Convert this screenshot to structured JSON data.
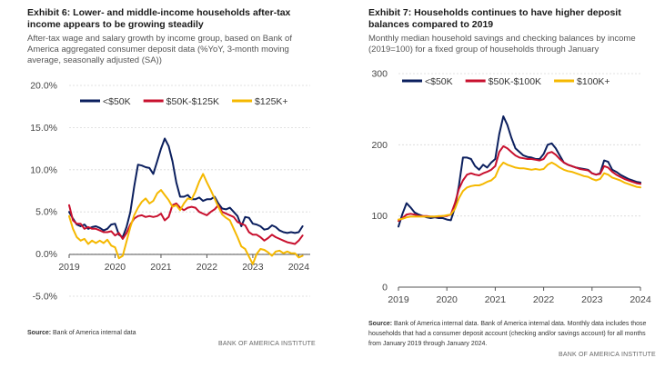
{
  "exhibit6": {
    "title": "Exhibit 6: Lower- and middle-income households after-tax income appears to be growing steadily",
    "subtitle": "After-tax wage and salary growth by income group, based on Bank of America aggregated consumer deposit data (%YoY, 3-month moving average, seasonally adjusted (SA))",
    "source_label": "Source:",
    "source_text": "Bank of America internal data",
    "brand": "BANK OF AMERICA INSTITUTE"
  },
  "exhibit7": {
    "title": "Exhibit 7: Households continues to have higher deposit balances compared to 2019",
    "subtitle": "Monthly median household savings and checking balances by income (2019=100) for a fixed group of households through January",
    "source_label": "Source:",
    "source_text": "Bank of America internal data. Bank of America internal data. Monthly data includes those households that had a consumer deposit account (checking and/or savings account) for all months from January 2019 through January 2024.",
    "brand": "BANK OF AMERICA INSTITUTE"
  },
  "colors": {
    "low": "#0b1f5e",
    "mid": "#c8102e",
    "high": "#f5b800",
    "axis": "#777777",
    "grid": "#d8d8d8"
  },
  "chart_data": [
    {
      "type": "line",
      "ylim": [
        -5,
        20
      ],
      "yticks": [
        -5,
        0,
        5,
        10,
        15,
        20
      ],
      "ytick_labels": [
        "-5.0%",
        "0.0%",
        "5.0%",
        "10.0%",
        "15.0%",
        "20.0%"
      ],
      "xlim": [
        2019,
        2024.25
      ],
      "xticks": [
        2019,
        2020,
        2021,
        2022,
        2023,
        2024
      ],
      "xtick_labels": [
        "2019",
        "2020",
        "2021",
        "2022",
        "2023",
        "2024"
      ],
      "legend_position": "top",
      "series": [
        {
          "name": "<$50K",
          "color_key": "low",
          "x": [
            2019.0,
            2019.083,
            2019.167,
            2019.25,
            2019.333,
            2019.417,
            2019.5,
            2019.583,
            2019.667,
            2019.75,
            2019.833,
            2019.917,
            2020.0,
            2020.083,
            2020.167,
            2020.25,
            2020.333,
            2020.417,
            2020.5,
            2020.583,
            2020.667,
            2020.75,
            2020.833,
            2020.917,
            2021.0,
            2021.083,
            2021.167,
            2021.25,
            2021.333,
            2021.417,
            2021.5,
            2021.583,
            2021.667,
            2021.75,
            2021.833,
            2021.917,
            2022.0,
            2022.083,
            2022.167,
            2022.25,
            2022.333,
            2022.417,
            2022.5,
            2022.583,
            2022.667,
            2022.75,
            2022.833,
            2022.917,
            2023.0,
            2023.083,
            2023.167,
            2023.25,
            2023.333,
            2023.417,
            2023.5,
            2023.583,
            2023.667,
            2023.75,
            2023.833,
            2023.917,
            2024.0,
            2024.083
          ],
          "y": [
            5.0,
            4.2,
            3.5,
            3.3,
            3.5,
            3.0,
            3.2,
            3.3,
            3.1,
            2.8,
            3.0,
            3.5,
            3.6,
            2.3,
            2.0,
            3.2,
            5.0,
            8.0,
            10.6,
            10.5,
            10.3,
            10.2,
            9.5,
            11.0,
            12.5,
            13.7,
            12.8,
            11.0,
            8.5,
            6.8,
            6.8,
            7.0,
            6.5,
            6.5,
            6.7,
            6.3,
            6.5,
            6.5,
            6.8,
            6.0,
            5.4,
            5.3,
            5.5,
            5.0,
            4.5,
            3.3,
            4.4,
            4.3,
            3.6,
            3.5,
            3.3,
            2.9,
            3.0,
            3.4,
            3.2,
            2.8,
            2.6,
            2.5,
            2.6,
            2.5,
            2.6,
            3.3
          ]
        },
        {
          "name": "$50K-$125K",
          "color_key": "mid",
          "x": [
            2019.0,
            2019.083,
            2019.167,
            2019.25,
            2019.333,
            2019.417,
            2019.5,
            2019.583,
            2019.667,
            2019.75,
            2019.833,
            2019.917,
            2020.0,
            2020.083,
            2020.167,
            2020.25,
            2020.333,
            2020.417,
            2020.5,
            2020.583,
            2020.667,
            2020.75,
            2020.833,
            2020.917,
            2021.0,
            2021.083,
            2021.167,
            2021.25,
            2021.333,
            2021.417,
            2021.5,
            2021.583,
            2021.667,
            2021.75,
            2021.833,
            2021.917,
            2022.0,
            2022.083,
            2022.167,
            2022.25,
            2022.333,
            2022.417,
            2022.5,
            2022.583,
            2022.667,
            2022.75,
            2022.833,
            2022.917,
            2023.0,
            2023.083,
            2023.167,
            2023.25,
            2023.333,
            2023.417,
            2023.5,
            2023.583,
            2023.667,
            2023.75,
            2023.833,
            2023.917,
            2024.0,
            2024.083
          ],
          "y": [
            5.8,
            4.0,
            3.6,
            3.6,
            3.0,
            3.2,
            3.0,
            3.0,
            2.8,
            2.6,
            2.6,
            2.7,
            2.2,
            2.5,
            1.8,
            2.5,
            3.5,
            4.2,
            4.5,
            4.6,
            4.4,
            4.5,
            4.4,
            4.5,
            4.8,
            4.0,
            4.4,
            5.8,
            6.0,
            5.5,
            5.2,
            5.5,
            5.6,
            5.5,
            5.0,
            4.8,
            4.6,
            5.0,
            5.3,
            5.8,
            5.0,
            4.8,
            4.6,
            4.4,
            3.8,
            3.6,
            3.4,
            2.6,
            2.3,
            2.3,
            2.0,
            1.6,
            1.9,
            2.3,
            2.0,
            1.8,
            1.6,
            1.4,
            1.3,
            1.2,
            1.6,
            2.2
          ]
        },
        {
          "name": "$125K+",
          "color_key": "high",
          "x": [
            2019.0,
            2019.083,
            2019.167,
            2019.25,
            2019.333,
            2019.417,
            2019.5,
            2019.583,
            2019.667,
            2019.75,
            2019.833,
            2019.917,
            2020.0,
            2020.083,
            2020.167,
            2020.25,
            2020.333,
            2020.417,
            2020.5,
            2020.583,
            2020.667,
            2020.75,
            2020.833,
            2020.917,
            2021.0,
            2021.083,
            2021.167,
            2021.25,
            2021.333,
            2021.417,
            2021.5,
            2021.583,
            2021.667,
            2021.75,
            2021.833,
            2021.917,
            2022.0,
            2022.083,
            2022.167,
            2022.25,
            2022.333,
            2022.417,
            2022.5,
            2022.583,
            2022.667,
            2022.75,
            2022.833,
            2022.917,
            2023.0,
            2023.083,
            2023.167,
            2023.25,
            2023.333,
            2023.417,
            2023.5,
            2023.583,
            2023.667,
            2023.75,
            2023.833,
            2023.917,
            2024.0,
            2024.083
          ],
          "y": [
            4.5,
            3.0,
            2.0,
            1.6,
            1.8,
            1.2,
            1.6,
            1.3,
            1.6,
            1.3,
            1.7,
            1.0,
            0.8,
            -0.5,
            -0.2,
            1.5,
            3.2,
            4.6,
            5.5,
            6.2,
            6.6,
            6.0,
            6.3,
            7.2,
            7.6,
            7.0,
            6.4,
            5.6,
            5.8,
            5.2,
            6.0,
            6.6,
            6.5,
            7.4,
            8.6,
            9.5,
            8.5,
            7.6,
            6.6,
            5.6,
            4.7,
            4.3,
            4.0,
            3.0,
            2.0,
            0.9,
            0.6,
            -0.3,
            -1.2,
            0.0,
            0.6,
            0.5,
            0.2,
            -0.2,
            0.3,
            0.4,
            0.1,
            0.3,
            0.1,
            0.1,
            -0.4,
            -0.2
          ]
        }
      ]
    },
    {
      "type": "line",
      "ylim": [
        0,
        300
      ],
      "yticks": [
        0,
        100,
        200,
        300
      ],
      "ytick_labels": [
        "0",
        "100",
        "200",
        "300"
      ],
      "xlim": [
        2019,
        2024
      ],
      "xticks": [
        2019,
        2020,
        2021,
        2022,
        2023,
        2024
      ],
      "xtick_labels": [
        "2019",
        "2020",
        "2021",
        "2022",
        "2023",
        "2024"
      ],
      "legend_position": "top",
      "series": [
        {
          "name": "<$50K",
          "color_key": "low",
          "x": [
            2019.0,
            2019.083,
            2019.167,
            2019.25,
            2019.333,
            2019.417,
            2019.5,
            2019.583,
            2019.667,
            2019.75,
            2019.833,
            2019.917,
            2020.0,
            2020.083,
            2020.167,
            2020.25,
            2020.333,
            2020.417,
            2020.5,
            2020.583,
            2020.667,
            2020.75,
            2020.833,
            2020.917,
            2021.0,
            2021.083,
            2021.167,
            2021.25,
            2021.333,
            2021.417,
            2021.5,
            2021.583,
            2021.667,
            2021.75,
            2021.833,
            2021.917,
            2022.0,
            2022.083,
            2022.167,
            2022.25,
            2022.333,
            2022.417,
            2022.5,
            2022.583,
            2022.667,
            2022.75,
            2022.833,
            2022.917,
            2023.0,
            2023.083,
            2023.167,
            2023.25,
            2023.333,
            2023.417,
            2023.5,
            2023.583,
            2023.667,
            2023.75,
            2023.833,
            2023.917,
            2024.0
          ],
          "y": [
            85,
            103,
            118,
            112,
            105,
            102,
            100,
            98,
            97,
            98,
            97,
            97,
            95,
            94,
            112,
            143,
            182,
            182,
            180,
            170,
            165,
            172,
            168,
            175,
            180,
            215,
            240,
            228,
            210,
            195,
            190,
            185,
            183,
            182,
            180,
            180,
            187,
            200,
            202,
            195,
            185,
            175,
            172,
            170,
            168,
            167,
            166,
            165,
            160,
            158,
            160,
            178,
            176,
            165,
            162,
            158,
            155,
            152,
            150,
            148,
            147
          ]
        },
        {
          "name": "$50K-$100K",
          "color_key": "mid",
          "x": [
            2019.0,
            2019.083,
            2019.167,
            2019.25,
            2019.333,
            2019.417,
            2019.5,
            2019.583,
            2019.667,
            2019.75,
            2019.833,
            2019.917,
            2020.0,
            2020.083,
            2020.167,
            2020.25,
            2020.333,
            2020.417,
            2020.5,
            2020.583,
            2020.667,
            2020.75,
            2020.833,
            2020.917,
            2021.0,
            2021.083,
            2021.167,
            2021.25,
            2021.333,
            2021.417,
            2021.5,
            2021.583,
            2021.667,
            2021.75,
            2021.833,
            2021.917,
            2022.0,
            2022.083,
            2022.167,
            2022.25,
            2022.333,
            2022.417,
            2022.5,
            2022.583,
            2022.667,
            2022.75,
            2022.833,
            2022.917,
            2023.0,
            2023.083,
            2023.167,
            2023.25,
            2023.333,
            2023.417,
            2023.5,
            2023.583,
            2023.667,
            2023.75,
            2023.833,
            2023.917,
            2024.0
          ],
          "y": [
            93,
            97,
            102,
            103,
            102,
            100,
            100,
            100,
            99,
            99,
            99,
            100,
            100,
            102,
            118,
            138,
            150,
            158,
            160,
            158,
            157,
            160,
            162,
            165,
            170,
            190,
            198,
            195,
            190,
            185,
            182,
            181,
            180,
            180,
            179,
            178,
            180,
            188,
            190,
            186,
            180,
            175,
            172,
            170,
            168,
            166,
            165,
            164,
            160,
            158,
            159,
            170,
            168,
            162,
            158,
            155,
            152,
            150,
            148,
            146,
            145
          ]
        },
        {
          "name": "$100K+",
          "color_key": "high",
          "x": [
            2019.0,
            2019.083,
            2019.167,
            2019.25,
            2019.333,
            2019.417,
            2019.5,
            2019.583,
            2019.667,
            2019.75,
            2019.833,
            2019.917,
            2020.0,
            2020.083,
            2020.167,
            2020.25,
            2020.333,
            2020.417,
            2020.5,
            2020.583,
            2020.667,
            2020.75,
            2020.833,
            2020.917,
            2021.0,
            2021.083,
            2021.167,
            2021.25,
            2021.333,
            2021.417,
            2021.5,
            2021.583,
            2021.667,
            2021.75,
            2021.833,
            2021.917,
            2022.0,
            2022.083,
            2022.167,
            2022.25,
            2022.333,
            2022.417,
            2022.5,
            2022.583,
            2022.667,
            2022.75,
            2022.833,
            2022.917,
            2023.0,
            2023.083,
            2023.167,
            2023.25,
            2023.333,
            2023.417,
            2023.5,
            2023.583,
            2023.667,
            2023.75,
            2023.833,
            2023.917,
            2024.0
          ],
          "y": [
            95,
            96,
            98,
            99,
            99,
            99,
            99,
            99,
            99,
            99,
            100,
            100,
            101,
            102,
            110,
            125,
            135,
            140,
            142,
            143,
            143,
            145,
            148,
            150,
            155,
            168,
            175,
            172,
            170,
            168,
            167,
            167,
            166,
            165,
            166,
            165,
            166,
            172,
            175,
            172,
            168,
            165,
            163,
            162,
            160,
            158,
            156,
            155,
            152,
            150,
            152,
            160,
            158,
            154,
            152,
            150,
            147,
            145,
            143,
            141,
            140
          ]
        }
      ]
    }
  ]
}
